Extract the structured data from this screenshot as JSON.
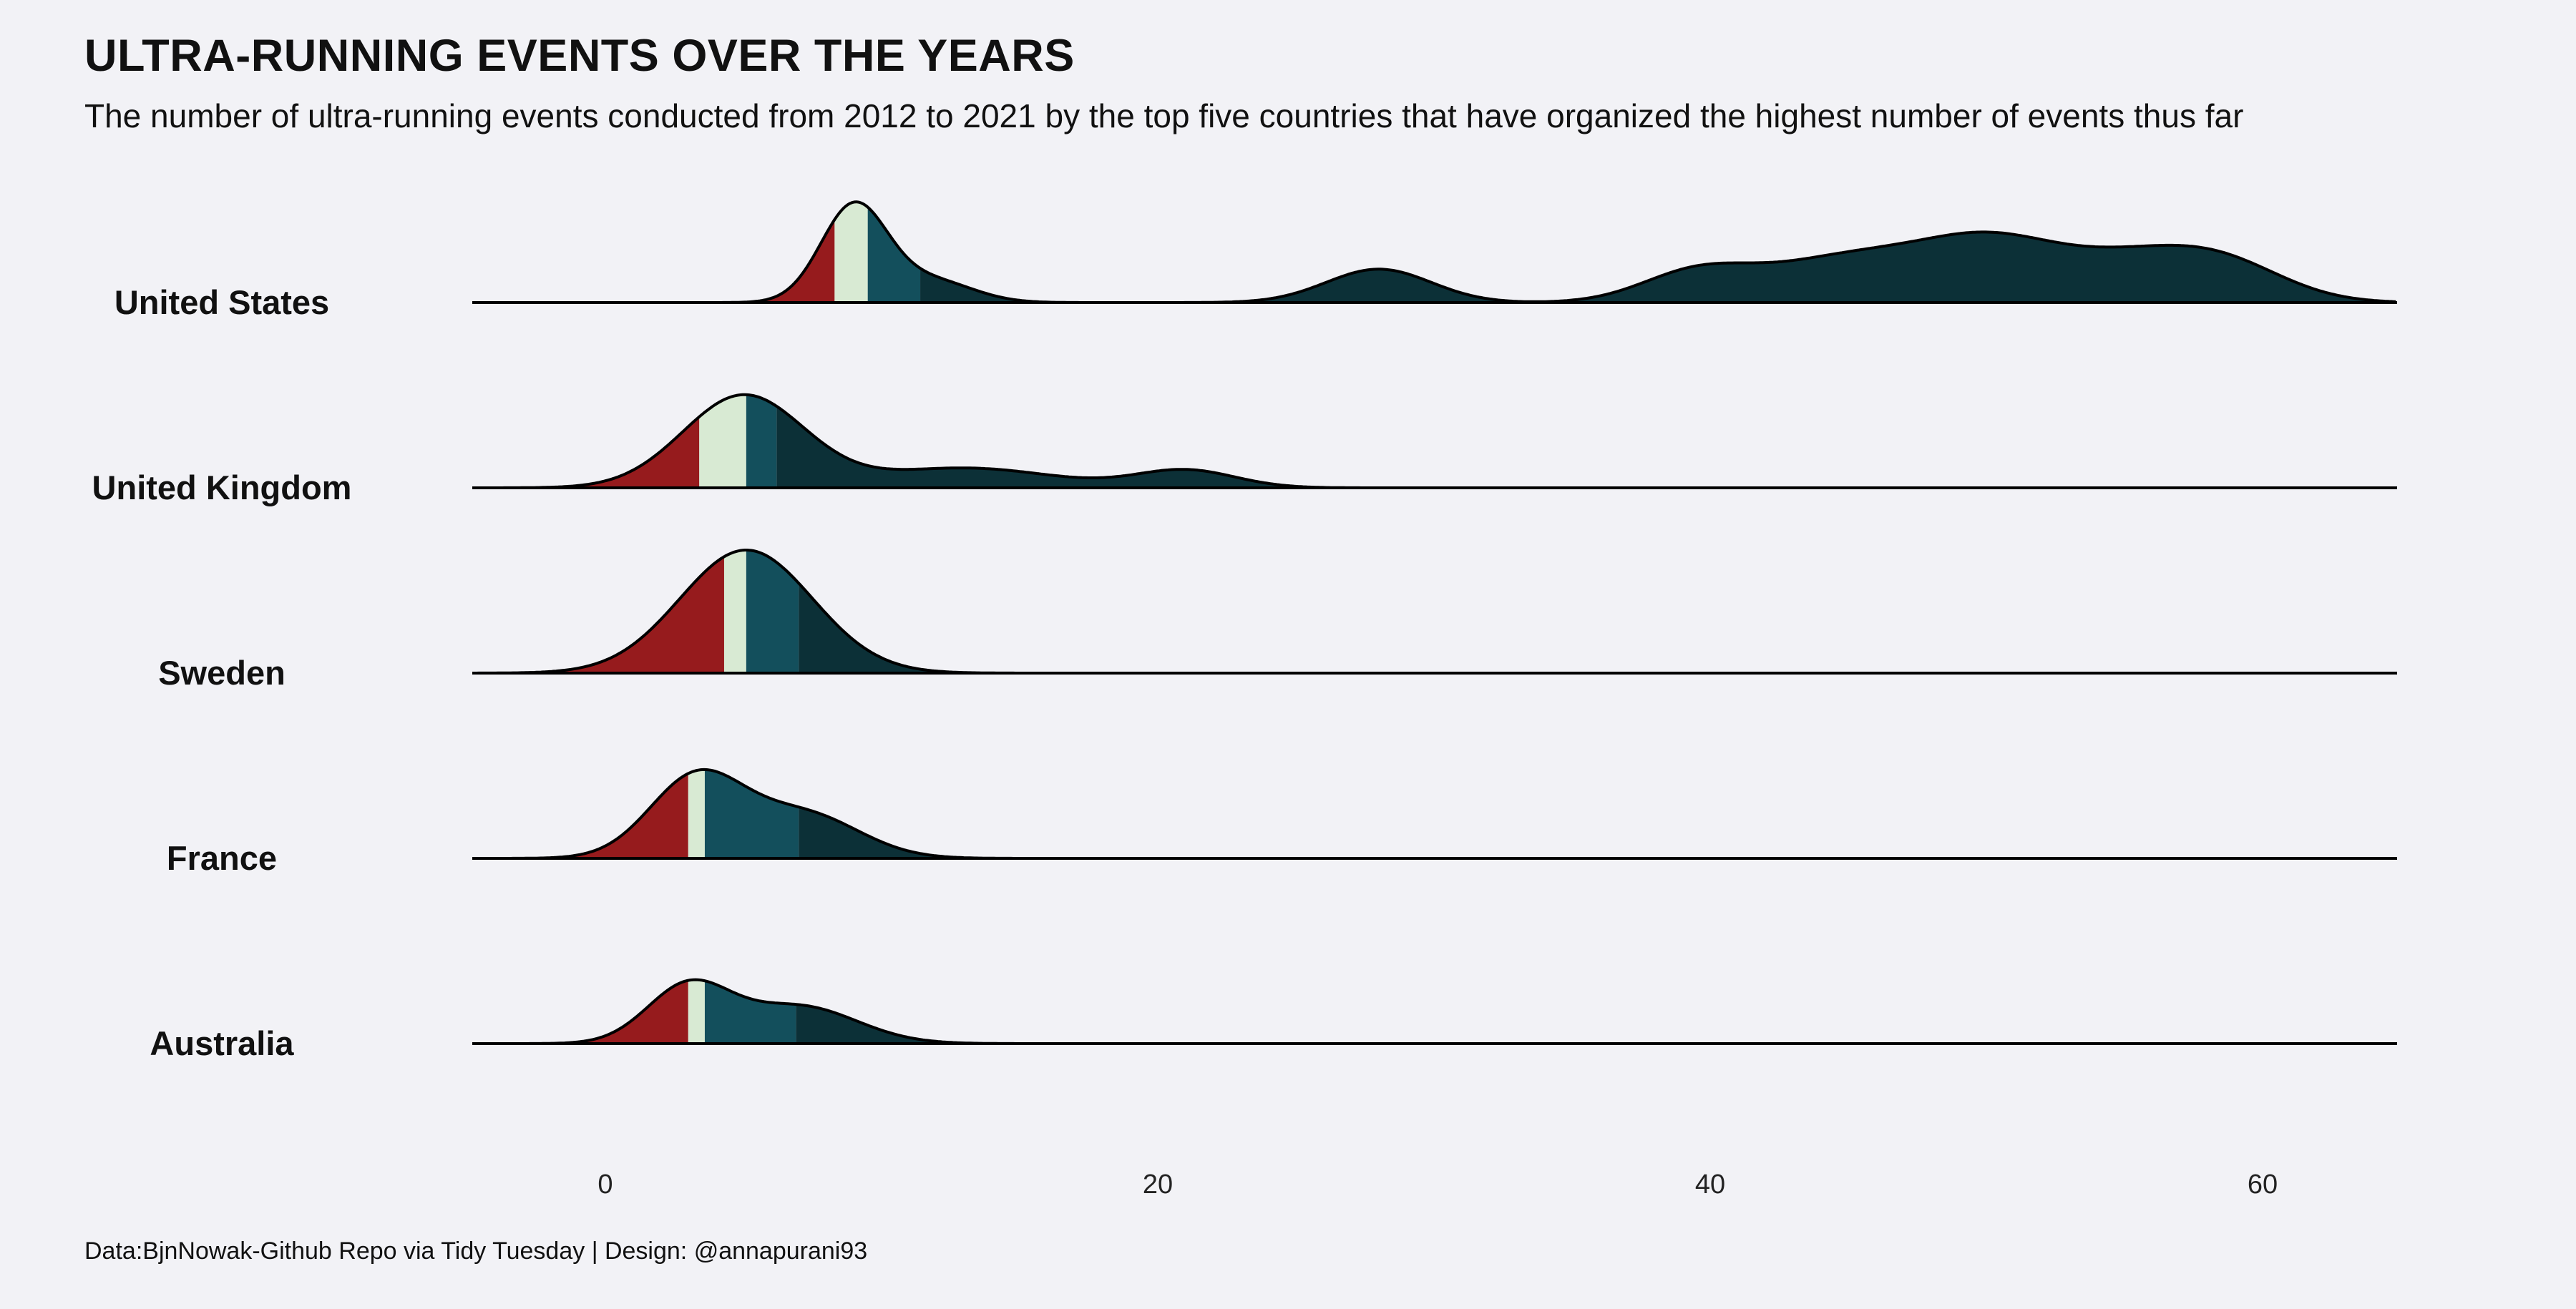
{
  "title": "ULTRA-RUNNING EVENTS OVER THE YEARS",
  "subtitle": "The number of ultra-running events conducted from 2012 to 2021 by the top five countries that have organized the highest number of events thus far",
  "caption": "Data:BjnNowak-Github Repo via Tidy Tuesday | Design: @annapurani93",
  "colors": {
    "background": "#f2f2f6",
    "q1": "#961b1d",
    "q2": "#d8ead3",
    "q3": "#134f5c",
    "q4": "#0c3037",
    "outline": "#000000"
  },
  "chart_data": {
    "type": "ridgeline",
    "title": "ULTRA-RUNNING EVENTS OVER THE YEARS",
    "xlabel": "",
    "ylabel": "",
    "xlim": [
      -5,
      65
    ],
    "x_ticks": [
      0,
      20,
      40,
      60
    ],
    "x_tick_labels": [
      "0",
      "20",
      "40",
      "60"
    ],
    "fill": "quartiles",
    "series": [
      {
        "name": "United States",
        "quartiles": [
          8.3,
          9.5,
          11.4
        ],
        "components": [
          {
            "mu": 9.0,
            "sd": 1.2,
            "w": 2.2
          },
          {
            "mu": 11.8,
            "sd": 1.5,
            "w": 0.5
          },
          {
            "mu": 28.0,
            "sd": 1.9,
            "w": 0.76
          },
          {
            "mu": 39.5,
            "sd": 2.0,
            "w": 0.65
          },
          {
            "mu": 45.0,
            "sd": 3.0,
            "w": 1.0
          },
          {
            "mu": 50.2,
            "sd": 2.5,
            "w": 1.25
          },
          {
            "mu": 55.0,
            "sd": 2.5,
            "w": 0.8
          },
          {
            "mu": 58.5,
            "sd": 2.3,
            "w": 0.85
          }
        ]
      },
      {
        "name": "United Kingdom",
        "quartiles": [
          3.4,
          5.1,
          6.2
        ],
        "components": [
          {
            "mu": 5.0,
            "sd": 2.2,
            "w": 2.1
          },
          {
            "mu": 13.0,
            "sd": 3.2,
            "w": 0.45
          },
          {
            "mu": 21.0,
            "sd": 1.8,
            "w": 0.4
          }
        ]
      },
      {
        "name": "Sweden",
        "quartiles": [
          4.3,
          5.1,
          7.0
        ],
        "components": [
          {
            "mu": 5.1,
            "sd": 2.4,
            "w": 2.8
          }
        ]
      },
      {
        "name": "France",
        "quartiles": [
          3.0,
          3.6,
          7.0
        ],
        "components": [
          {
            "mu": 3.3,
            "sd": 1.7,
            "w": 1.85
          },
          {
            "mu": 7.2,
            "sd": 2.0,
            "w": 1.0
          }
        ]
      },
      {
        "name": "Australia",
        "quartiles": [
          null,
          null,
          null
        ],
        "components": []
      }
    ]
  }
}
